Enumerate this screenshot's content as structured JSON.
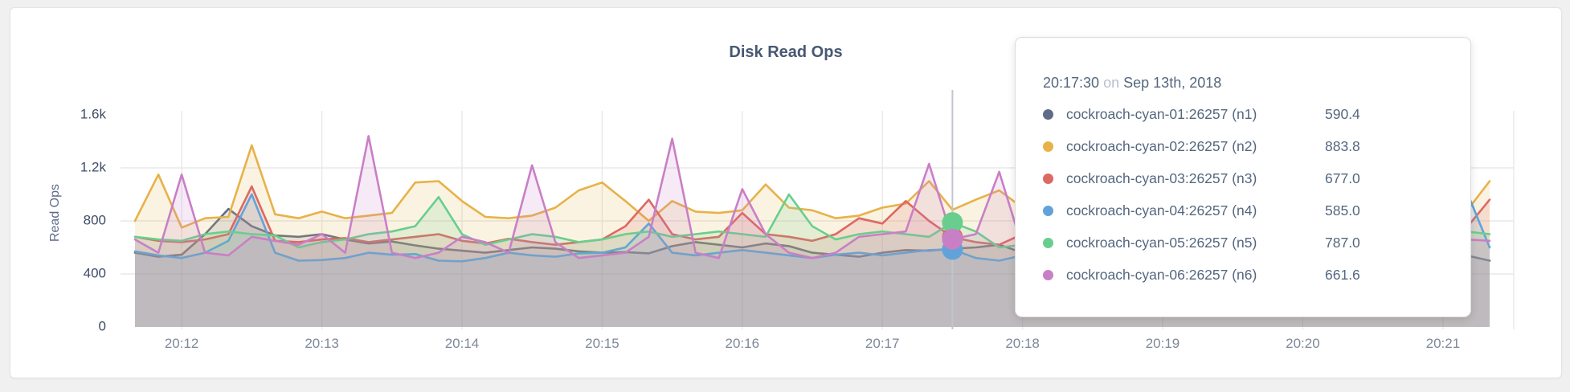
{
  "chart_data": {
    "type": "area",
    "title": "Disk Read Ops",
    "ylabel": "Read Ops",
    "xlabel": "",
    "ylim": [
      0,
      1750
    ],
    "grid": true,
    "legend_position": "tooltip-only",
    "x_start_time": "20:11:40",
    "x_interval_seconds": 10,
    "x_ticks": [
      {
        "label": "20:12",
        "t": 20
      },
      {
        "label": "20:13",
        "t": 80
      },
      {
        "label": "20:14",
        "t": 140
      },
      {
        "label": "20:15",
        "t": 200
      },
      {
        "label": "20:16",
        "t": 260
      },
      {
        "label": "20:17",
        "t": 320
      },
      {
        "label": "20:18",
        "t": 380
      },
      {
        "label": "20:19",
        "t": 440
      },
      {
        "label": "20:20",
        "t": 500
      },
      {
        "label": "20:21",
        "t": 560
      }
    ],
    "y_ticks": [
      {
        "label": "1.6k",
        "value": 1600,
        "gridline": false
      },
      {
        "label": "1.2k",
        "value": 1200,
        "gridline": true
      },
      {
        "label": "800",
        "value": 800,
        "gridline": true
      },
      {
        "label": "400",
        "value": 400,
        "gridline": true
      },
      {
        "label": "0",
        "value": 0,
        "gridline": false
      }
    ],
    "series": [
      {
        "id": "n1",
        "name": "cockroach-cyan-01:26257 (n1)",
        "color": "#5F6C87",
        "values": [
          560,
          530,
          545,
          700,
          890,
          760,
          690,
          680,
          700,
          660,
          630,
          645,
          615,
          590,
          575,
          560,
          580,
          600,
          590,
          570,
          560,
          565,
          555,
          610,
          640,
          620,
          600,
          630,
          610,
          560,
          545,
          530,
          560,
          580,
          575,
          590.4,
          600,
          620,
          560,
          540,
          555,
          570,
          560,
          545,
          560,
          575,
          550,
          540,
          560,
          570,
          555,
          545,
          560,
          575,
          560,
          545,
          535,
          540,
          500
        ]
      },
      {
        "id": "n2",
        "name": "cockroach-cyan-02:26257 (n2)",
        "color": "#E7B249",
        "values": [
          800,
          1150,
          750,
          820,
          830,
          1370,
          850,
          820,
          870,
          820,
          840,
          860,
          1090,
          1100,
          950,
          830,
          820,
          840,
          900,
          1030,
          1090,
          950,
          800,
          950,
          870,
          860,
          880,
          1075,
          900,
          880,
          820,
          840,
          900,
          930,
          1100,
          883.8,
          960,
          1030,
          900,
          850,
          880,
          820,
          860,
          900,
          870,
          840,
          880,
          860,
          830,
          870,
          900,
          850,
          870,
          900,
          850,
          870,
          860,
          870,
          1100
        ]
      },
      {
        "id": "n3",
        "name": "cockroach-cyan-03:26257 (n3)",
        "color": "#DC6962",
        "values": [
          680,
          650,
          640,
          660,
          700,
          1060,
          650,
          640,
          660,
          670,
          640,
          660,
          680,
          700,
          650,
          630,
          665,
          640,
          620,
          640,
          660,
          760,
          960,
          700,
          660,
          680,
          860,
          700,
          680,
          650,
          700,
          820,
          780,
          950,
          800,
          677.0,
          640,
          620,
          700,
          680,
          660,
          640,
          700,
          720,
          680,
          660,
          700,
          680,
          660,
          640,
          700,
          720,
          680,
          660,
          640,
          660,
          700,
          745,
          960
        ]
      },
      {
        "id": "n4",
        "name": "cockroach-cyan-04:26257 (n4)",
        "color": "#61A3D9",
        "values": [
          570,
          540,
          520,
          560,
          650,
          1000,
          560,
          500,
          505,
          520,
          560,
          545,
          550,
          500,
          495,
          520,
          560,
          540,
          530,
          555,
          560,
          600,
          780,
          560,
          540,
          560,
          580,
          560,
          540,
          520,
          545,
          560,
          540,
          560,
          580,
          585.0,
          520,
          500,
          540,
          560,
          545,
          530,
          555,
          540,
          520,
          545,
          560,
          540,
          530,
          550,
          560,
          540,
          525,
          545,
          560,
          540,
          530,
          1030,
          600
        ]
      },
      {
        "id": "n5",
        "name": "cockroach-cyan-05:26257 (n5)",
        "color": "#69CE8D",
        "values": [
          680,
          660,
          650,
          700,
          720,
          700,
          690,
          600,
          640,
          660,
          700,
          720,
          760,
          980,
          700,
          620,
          660,
          700,
          680,
          640,
          660,
          700,
          720,
          680,
          700,
          720,
          700,
          680,
          1000,
          760,
          660,
          700,
          720,
          700,
          680,
          787.0,
          720,
          600,
          620,
          660,
          700,
          680,
          660,
          700,
          720,
          700,
          680,
          660,
          700,
          720,
          700,
          680,
          660,
          700,
          720,
          700,
          680,
          720,
          700
        ]
      },
      {
        "id": "n6",
        "name": "cockroach-cyan-06:26257 (n6)",
        "color": "#C97FC6",
        "values": [
          660,
          560,
          1150,
          560,
          540,
          680,
          650,
          620,
          700,
          560,
          1440,
          560,
          520,
          560,
          680,
          640,
          560,
          1220,
          640,
          520,
          540,
          560,
          680,
          1420,
          560,
          520,
          1040,
          700,
          560,
          520,
          560,
          680,
          700,
          720,
          1230,
          661.6,
          700,
          1170,
          600,
          560,
          640,
          600,
          560,
          640,
          600,
          560,
          640,
          600,
          560,
          640,
          600,
          560,
          640,
          600,
          560,
          640,
          600,
          660,
          650
        ]
      }
    ]
  },
  "tooltip": {
    "time": "20:17:30",
    "preposition": "on",
    "date": "Sep 13th, 2018",
    "hover": {
      "t": 350,
      "dot_series": [
        "n3",
        "n4",
        "n5",
        "n6"
      ],
      "dot_radius": 13
    },
    "rows": [
      {
        "series": "n1",
        "label": "cockroach-cyan-01:26257 (n1)",
        "value": "590.4"
      },
      {
        "series": "n2",
        "label": "cockroach-cyan-02:26257 (n2)",
        "value": "883.8"
      },
      {
        "series": "n3",
        "label": "cockroach-cyan-03:26257 (n3)",
        "value": "677.0"
      },
      {
        "series": "n4",
        "label": "cockroach-cyan-04:26257 (n4)",
        "value": "585.0"
      },
      {
        "series": "n5",
        "label": "cockroach-cyan-05:26257 (n5)",
        "value": "787.0"
      },
      {
        "series": "n6",
        "label": "cockroach-cyan-06:26257 (n6)",
        "value": "661.6"
      }
    ]
  }
}
